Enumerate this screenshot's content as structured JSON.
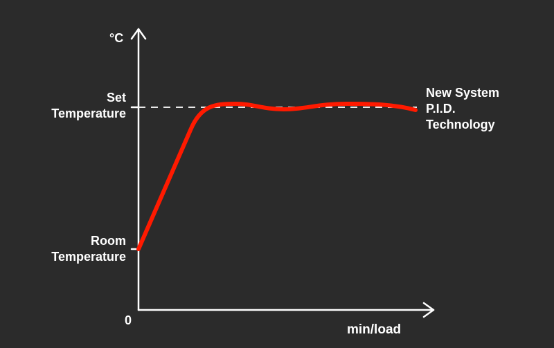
{
  "diagram": {
    "y_axis_unit": "°C",
    "x_axis_label": "min/load",
    "origin_label": "0",
    "set_temperature": [
      "Set",
      "Temperature"
    ],
    "room_temperature": [
      "Room",
      "Temperature"
    ],
    "curve_label": [
      "New System",
      "P.I.D.",
      "Technology"
    ],
    "colors": {
      "background": "#2b2b2b",
      "axes": "#ffffff",
      "curve": "#ff1a00"
    }
  }
}
